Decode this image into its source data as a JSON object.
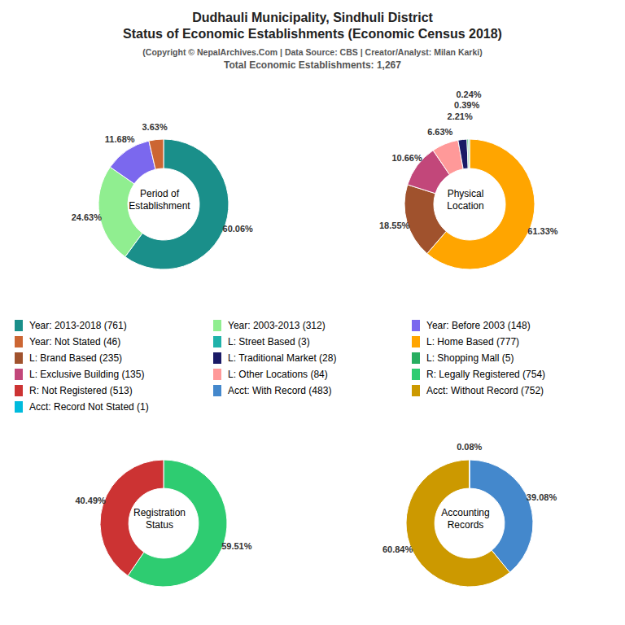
{
  "title": [
    "Dudhauli Municipality, Sindhuli District",
    "Status of Economic Establishments (Economic Census 2018)"
  ],
  "subtitle": [
    "(Copyright © NepalArchives.Com | Data Source: CBS | Creator/Analyst: Milan Karki)",
    "Total Economic Establishments: 1,267"
  ],
  "legend_entries": [
    {
      "label": "Year: 2013-2018 (761)",
      "color": "#1a8f8a"
    },
    {
      "label": "Year: 2003-2013 (312)",
      "color": "#90ee90"
    },
    {
      "label": "Year: Before 2003 (148)",
      "color": "#7B68EE"
    },
    {
      "label": "Year: Not Stated (46)",
      "color": "#cc6633"
    },
    {
      "label": "L: Street Based (3)",
      "color": "#20B2AA"
    },
    {
      "label": "L: Home Based (777)",
      "color": "#FFA500"
    },
    {
      "label": "L: Brand Based (235)",
      "color": "#A0522D"
    },
    {
      "label": "L: Traditional Market (28)",
      "color": "#1a1a66"
    },
    {
      "label": "L: Shopping Mall (5)",
      "color": "#27ae60"
    },
    {
      "label": "L: Exclusive Building (135)",
      "color": "#C2477A"
    },
    {
      "label": "L: Other Locations (84)",
      "color": "#FF9999"
    },
    {
      "label": "R: Legally Registered (754)",
      "color": "#2ecc71"
    },
    {
      "label": "R: Not Registered (513)",
      "color": "#CC3333"
    },
    {
      "label": "Acct: With Record (483)",
      "color": "#4488CC"
    },
    {
      "label": "Acct: Without Record (752)",
      "color": "#CC9900"
    },
    {
      "label": "Acct: Record Not Stated (1)",
      "color": "#00BBDD"
    }
  ],
  "chart_data": [
    {
      "type": "pie",
      "title": "Period of\nEstablishment",
      "values": [
        60.06,
        24.63,
        11.68,
        3.63
      ],
      "value_labels": [
        "60.06%",
        "24.63%",
        "11.68%",
        "3.63%"
      ],
      "colors": [
        "#1a8f8a",
        "#90ee90",
        "#7B68EE",
        "#cc6633"
      ],
      "data_labels": true
    },
    {
      "type": "pie",
      "title": "Physical\nLocation",
      "values": [
        61.33,
        18.55,
        10.66,
        6.63,
        2.21,
        0.39,
        0.24
      ],
      "value_labels": [
        "61.33%",
        "18.55%",
        "10.66%",
        "6.63%",
        "2.21%",
        "0.39%",
        "0.24%"
      ],
      "colors": [
        "#FFA500",
        "#A0522D",
        "#C2477A",
        "#FF9999",
        "#1a1a66",
        "#27ae60",
        "#20B2AA"
      ],
      "data_labels": true
    },
    {
      "type": "pie",
      "title": "Registration\nStatus",
      "values": [
        59.51,
        40.49
      ],
      "value_labels": [
        "59.51%",
        "40.49%"
      ],
      "colors": [
        "#2ecc71",
        "#CC3333"
      ],
      "data_labels": true
    },
    {
      "type": "pie",
      "title": "Accounting\nRecords",
      "values": [
        39.08,
        60.84,
        0.08
      ],
      "value_labels": [
        "39.08%",
        "60.84%",
        "0.08%"
      ],
      "colors": [
        "#4488CC",
        "#CC9900",
        "#00BBDD"
      ],
      "data_labels": true
    }
  ]
}
